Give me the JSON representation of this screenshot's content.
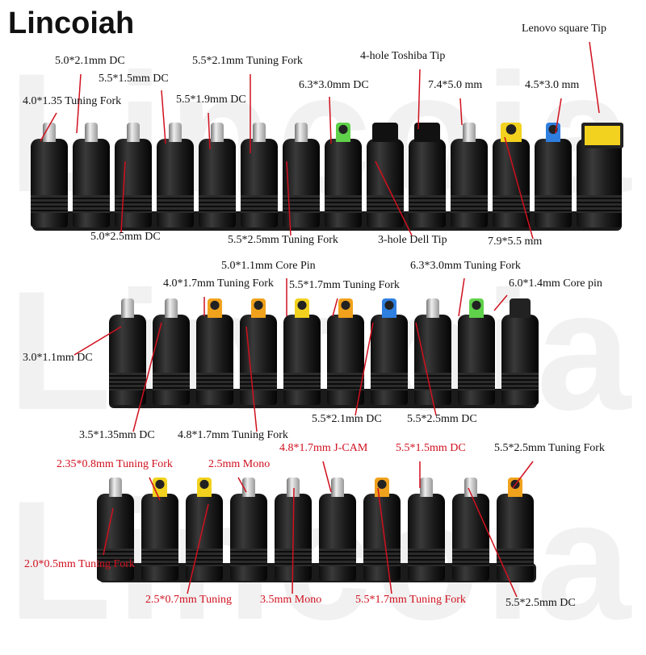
{
  "brand": "Lincoiah",
  "watermark": "Lincoiah",
  "colors": {
    "label_black": "#111111",
    "label_red": "#d0101e",
    "connector": "#1b1b1b"
  },
  "rows": [
    {
      "tips": [
        "silver",
        "silver",
        "silver",
        "silver",
        "silver",
        "silver",
        "silver",
        "green",
        "dell",
        "toshiba",
        "silver",
        "yellow",
        "blue",
        "lenovo"
      ]
    },
    {
      "tips": [
        "silver",
        "silver",
        "orange",
        "orange",
        "yellow",
        "orange",
        "blue",
        "silver",
        "green",
        "black"
      ]
    },
    {
      "tips": [
        "silver",
        "yellow",
        "yellow",
        "silver",
        "silver",
        "silver",
        "orange",
        "silver",
        "silver",
        "orange"
      ]
    }
  ],
  "labels": {
    "top": [
      {
        "text": "5.0*2.1mm DC",
        "color": "black"
      },
      {
        "text": "4.0*1.35 Tuning Fork",
        "color": "black"
      },
      {
        "text": "5.5*1.5mm DC",
        "color": "black"
      },
      {
        "text": "5.5*2.1mm Tuning Fork",
        "color": "black"
      },
      {
        "text": "5.5*1.9mm DC",
        "color": "black"
      },
      {
        "text": "6.3*3.0mm DC",
        "color": "black"
      },
      {
        "text": "4-hole Toshiba Tip",
        "color": "black"
      },
      {
        "text": "7.4*5.0 mm",
        "color": "black"
      },
      {
        "text": "4.5*3.0 mm",
        "color": "black"
      },
      {
        "text": "Lenovo square Tip",
        "color": "black"
      },
      {
        "text": "5.0*2.5mm DC",
        "color": "black"
      },
      {
        "text": "5.5*2.5mm Tuning Fork",
        "color": "black"
      },
      {
        "text": "3-hole Dell Tip",
        "color": "black"
      },
      {
        "text": "7.9*5.5 mm",
        "color": "black"
      }
    ],
    "middle": [
      {
        "text": "5.0*1.1mm Core Pin",
        "color": "black"
      },
      {
        "text": "6.3*3.0mm Tuning Fork",
        "color": "black"
      },
      {
        "text": "4.0*1.7mm Tuning Fork",
        "color": "black"
      },
      {
        "text": "5.5*1.7mm Tuning Fork",
        "color": "black"
      },
      {
        "text": "6.0*1.4mm Core pin",
        "color": "black"
      },
      {
        "text": "3.0*1.1mm DC",
        "color": "black"
      },
      {
        "text": "5.5*2.1mm DC",
        "color": "black"
      },
      {
        "text": "5.5*2.5mm DC",
        "color": "black"
      },
      {
        "text": "3.5*1.35mm DC",
        "color": "black"
      },
      {
        "text": "4.8*1.7mm Tuning Fork",
        "color": "black"
      }
    ],
    "bottom": [
      {
        "text": "4.8*1.7mm J-CAM",
        "color": "red"
      },
      {
        "text": "5.5*1.5mm DC",
        "color": "red"
      },
      {
        "text": "5.5*2.5mm Tuning Fork",
        "color": "black"
      },
      {
        "text": "2.35*0.8mm Tuning Fork",
        "color": "red"
      },
      {
        "text": "2.5mm Mono",
        "color": "red"
      },
      {
        "text": "2.0*0.5mm Tuning Fork",
        "color": "red"
      },
      {
        "text": "2.5*0.7mm Tuning",
        "color": "red"
      },
      {
        "text": "3.5mm Mono",
        "color": "red"
      },
      {
        "text": "5.5*1.7mm Tuning Fork",
        "color": "red"
      },
      {
        "text": "5.5*2.5mm DC",
        "color": "black"
      }
    ]
  }
}
